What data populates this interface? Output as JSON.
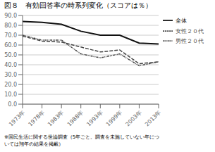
{
  "chart_data": {
    "type": "line",
    "title": "図８　有効回答率の時系列変化（スコアは％）",
    "annotations": [
      "※国民生活に関する世論調査（5年ごと。調査を未施していない年につ",
      "いては翔年の結果を掲載）"
    ],
    "categories": [
      "1973年",
      "1978年",
      "1983年",
      "1988年",
      "1993年",
      "1999年",
      "2003年",
      "2013年"
    ],
    "series": [
      {
        "name": "全体",
        "color": "#111111",
        "line_style": "solid",
        "values": [
          84.0,
          83.0,
          81.0,
          74.0,
          70.0,
          70.0,
          62.0,
          61.0
        ]
      },
      {
        "name": "男性２０代",
        "color": "#444444",
        "line_style": "dashdot",
        "values": [
          70.0,
          65.0,
          65.0,
          51.0,
          47.0,
          51.0,
          39.0,
          43.0
        ]
      },
      {
        "name": "女性２０代",
        "color": "#444444",
        "line_style": "dashed",
        "values": [
          69.0,
          64.0,
          63.0,
          58.0,
          53.0,
          55.0,
          41.0,
          43.0
        ]
      }
    ],
    "ylim": [
      0,
      90
    ],
    "yticks": [
      {
        "value": 0,
        "label": "0.0"
      },
      {
        "value": 10,
        "label": "10.0"
      },
      {
        "value": 20,
        "label": "20.0"
      },
      {
        "value": 30,
        "label": "30.0"
      },
      {
        "value": 40,
        "label": "40.0"
      },
      {
        "value": 50,
        "label": "50.0"
      },
      {
        "value": 60,
        "label": "60.0"
      },
      {
        "value": 70,
        "label": "70.0"
      },
      {
        "value": 80,
        "label": "80.0"
      },
      {
        "value": 90,
        "label": "90.0"
      }
    ],
    "grid": true,
    "legend": "right"
  }
}
